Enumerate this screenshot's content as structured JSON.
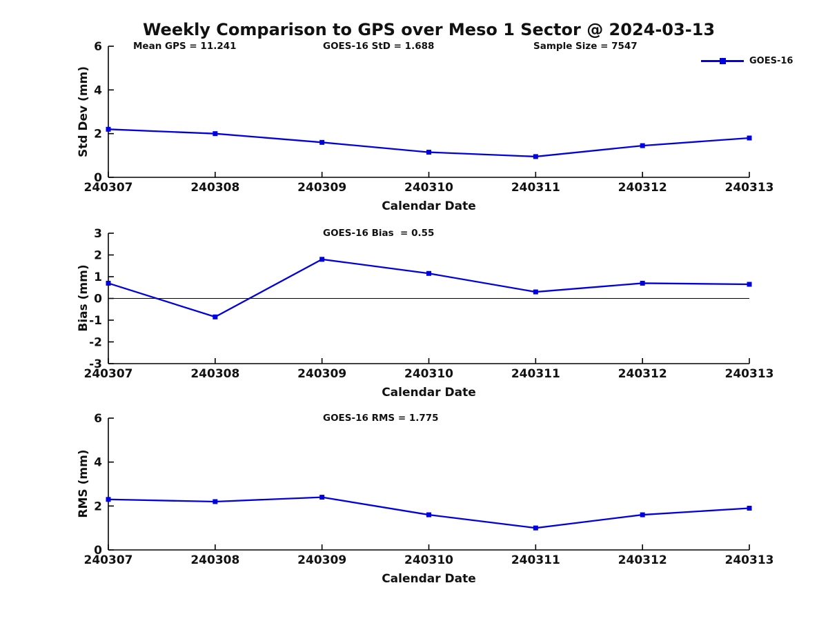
{
  "figure": {
    "title": "Weekly Comparison to GPS over Meso 1 Sector @ 2024-03-13",
    "legend": {
      "label": "GOES-16"
    },
    "colors": {
      "line": "#0000e0",
      "axis": "#000000",
      "text": "#111111",
      "background": "#ffffff"
    }
  },
  "chart_data": [
    {
      "type": "line",
      "title": "",
      "annotations": [
        "Mean GPS = 11.241",
        "GOES-16 StD = 1.688",
        "Sample Size = 7547"
      ],
      "categories": [
        "240307",
        "240308",
        "240309",
        "240310",
        "240311",
        "240312",
        "240313"
      ],
      "series": [
        {
          "name": "GOES-16",
          "values": [
            2.2,
            2.0,
            1.6,
            1.15,
            0.95,
            1.45,
            1.8
          ]
        }
      ],
      "xlabel": "Calendar Date",
      "ylabel": "Std Dev (mm)",
      "ylim": [
        0,
        6
      ],
      "yticks": [
        0,
        2,
        4,
        6
      ],
      "grid": false,
      "zero_line": false,
      "marker": "square",
      "legend_position": "top-right-outside",
      "line_color": "#0000e0"
    },
    {
      "type": "line",
      "title": "GOES-16 Bias  = 0.55",
      "categories": [
        "240307",
        "240308",
        "240309",
        "240310",
        "240311",
        "240312",
        "240313"
      ],
      "series": [
        {
          "name": "GOES-16",
          "values": [
            0.7,
            -0.85,
            1.8,
            1.15,
            0.3,
            0.7,
            0.65
          ]
        }
      ],
      "xlabel": "Calendar Date",
      "ylabel": "Bias (mm)",
      "ylim": [
        -3,
        3
      ],
      "yticks": [
        -3,
        -2,
        -1,
        0,
        1,
        2,
        3
      ],
      "grid": false,
      "zero_line": true,
      "marker": "square",
      "line_color": "#0000e0"
    },
    {
      "type": "line",
      "title": "GOES-16 RMS = 1.775",
      "categories": [
        "240307",
        "240308",
        "240309",
        "240310",
        "240311",
        "240312",
        "240313"
      ],
      "series": [
        {
          "name": "GOES-16",
          "values": [
            2.3,
            2.2,
            2.4,
            1.6,
            1.0,
            1.6,
            1.9
          ]
        }
      ],
      "xlabel": "Calendar Date",
      "ylabel": "RMS (mm)",
      "ylim": [
        0,
        6
      ],
      "yticks": [
        0,
        2,
        4,
        6
      ],
      "grid": false,
      "zero_line": false,
      "marker": "square",
      "line_color": "#0000e0"
    }
  ]
}
